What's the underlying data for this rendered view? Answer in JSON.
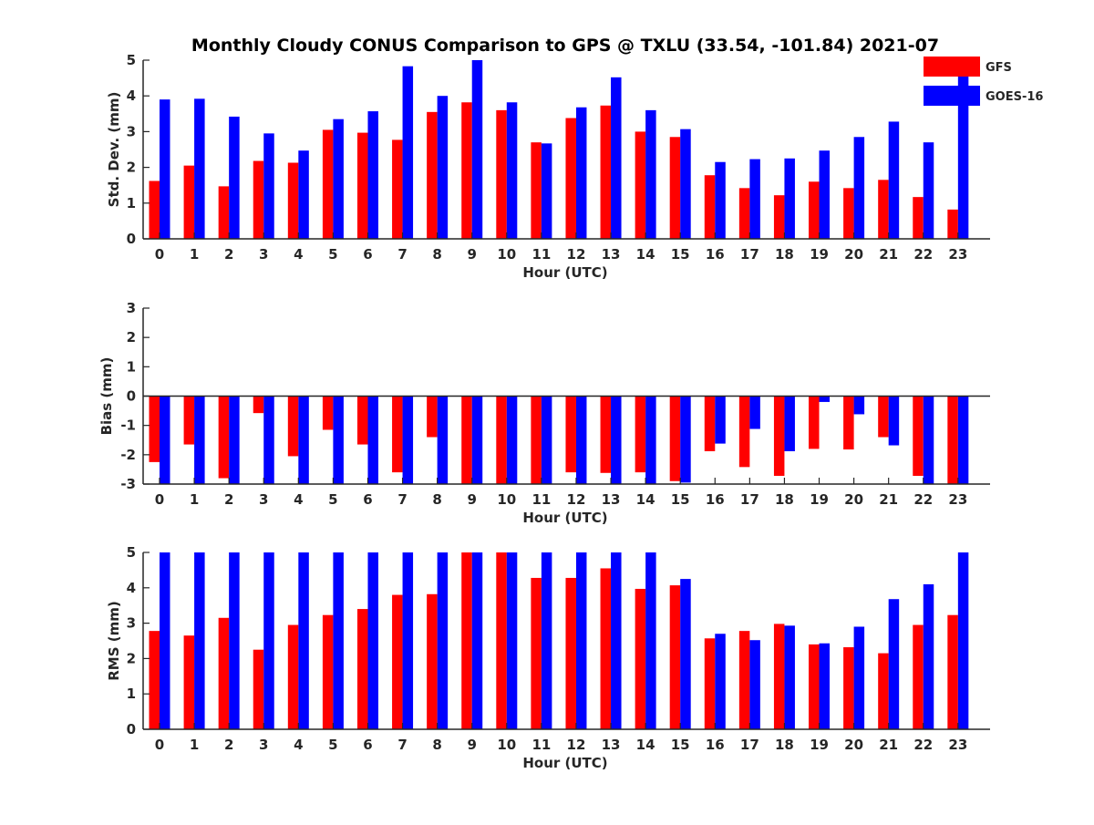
{
  "title": "Monthly Cloudy CONUS Comparison to GPS @ TXLU (33.54, -101.84) 2021-07",
  "legend": [
    {
      "name": "GFS",
      "color": "#ff0000"
    },
    {
      "name": "GOES-16",
      "color": "#0000ff"
    }
  ],
  "chart_data": [
    {
      "type": "bar",
      "xlabel": "Hour (UTC)",
      "ylabel": "Std. Dev. (mm)",
      "categories": [
        "0",
        "1",
        "2",
        "3",
        "4",
        "5",
        "6",
        "7",
        "8",
        "9",
        "10",
        "11",
        "12",
        "13",
        "14",
        "15",
        "16",
        "17",
        "18",
        "19",
        "20",
        "21",
        "22",
        "23"
      ],
      "ylim": [
        0,
        5
      ],
      "yticks": [
        "0",
        "1",
        "2",
        "3",
        "4",
        "5"
      ],
      "series": [
        {
          "name": "GFS",
          "color": "#ff0000",
          "values": [
            1.62,
            2.05,
            1.47,
            2.18,
            2.13,
            3.05,
            2.97,
            2.77,
            3.55,
            3.82,
            3.6,
            2.7,
            3.38,
            3.73,
            3.0,
            2.85,
            1.78,
            1.42,
            1.22,
            1.6,
            1.42,
            1.65,
            1.17,
            0.82
          ]
        },
        {
          "name": "GOES-16",
          "color": "#0000ff",
          "values": [
            3.9,
            3.92,
            3.42,
            2.95,
            2.47,
            3.35,
            3.57,
            4.83,
            4.0,
            5.0,
            3.82,
            2.67,
            3.68,
            4.52,
            3.6,
            3.07,
            2.15,
            2.23,
            2.25,
            2.47,
            2.85,
            3.28,
            2.7,
            4.7
          ]
        }
      ]
    },
    {
      "type": "bar",
      "xlabel": "Hour (UTC)",
      "ylabel": "Bias (mm)",
      "categories": [
        "0",
        "1",
        "2",
        "3",
        "4",
        "5",
        "6",
        "7",
        "8",
        "9",
        "10",
        "11",
        "12",
        "13",
        "14",
        "15",
        "16",
        "17",
        "18",
        "19",
        "20",
        "21",
        "22",
        "23"
      ],
      "ylim": [
        -3,
        3
      ],
      "yticks": [
        "-3",
        "-2",
        "-1",
        "0",
        "1",
        "2",
        "3"
      ],
      "series": [
        {
          "name": "GFS",
          "color": "#ff0000",
          "values": [
            -2.25,
            -1.65,
            -2.8,
            -0.58,
            -2.05,
            -1.15,
            -1.65,
            -2.6,
            -1.4,
            -3.0,
            -3.0,
            -3.0,
            -2.6,
            -2.62,
            -2.6,
            -2.9,
            -1.88,
            -2.42,
            -2.72,
            -1.8,
            -1.82,
            -1.4,
            -2.72,
            -3.0
          ]
        },
        {
          "name": "GOES-16",
          "color": "#0000ff",
          "values": [
            -3.0,
            -3.0,
            -3.0,
            -3.0,
            -3.0,
            -3.0,
            -3.0,
            -3.0,
            -3.0,
            -3.0,
            -3.0,
            -3.0,
            -3.0,
            -3.0,
            -3.0,
            -2.95,
            -1.62,
            -1.12,
            -1.88,
            -0.2,
            -0.62,
            -1.68,
            -3.0,
            -3.0
          ]
        }
      ]
    },
    {
      "type": "bar",
      "xlabel": "Hour (UTC)",
      "ylabel": "RMS (mm)",
      "categories": [
        "0",
        "1",
        "2",
        "3",
        "4",
        "5",
        "6",
        "7",
        "8",
        "9",
        "10",
        "11",
        "12",
        "13",
        "14",
        "15",
        "16",
        "17",
        "18",
        "19",
        "20",
        "21",
        "22",
        "23"
      ],
      "ylim": [
        0,
        5
      ],
      "yticks": [
        "0",
        "1",
        "2",
        "3",
        "4",
        "5"
      ],
      "series": [
        {
          "name": "GFS",
          "color": "#ff0000",
          "values": [
            2.78,
            2.65,
            3.15,
            2.25,
            2.95,
            3.23,
            3.4,
            3.8,
            3.82,
            5.0,
            5.0,
            4.28,
            4.28,
            4.55,
            3.97,
            4.07,
            2.57,
            2.78,
            2.98,
            2.4,
            2.32,
            2.15,
            2.95,
            3.23
          ]
        },
        {
          "name": "GOES-16",
          "color": "#0000ff",
          "values": [
            5.0,
            5.0,
            5.0,
            5.0,
            5.0,
            5.0,
            5.0,
            5.0,
            5.0,
            5.0,
            5.0,
            5.0,
            5.0,
            5.0,
            5.0,
            4.25,
            2.7,
            2.52,
            2.93,
            2.43,
            2.9,
            3.68,
            4.1,
            5.0
          ]
        }
      ]
    }
  ]
}
